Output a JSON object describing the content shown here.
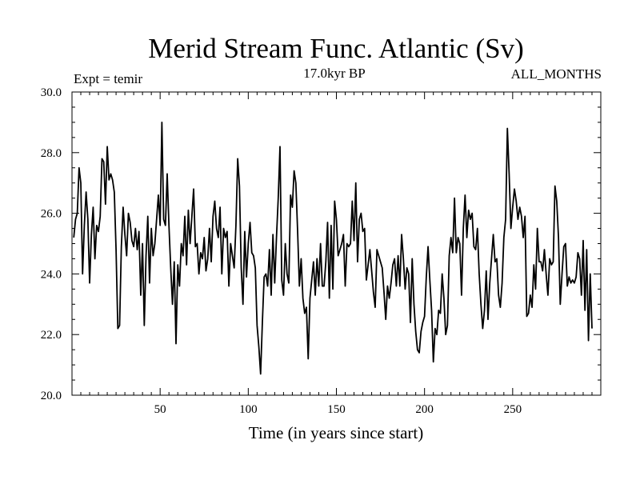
{
  "chart_data": {
    "type": "line",
    "title": "Merid Stream Func. Atlantic (Sv)",
    "subtitle_left": "Expt = temir",
    "subtitle_center": "17.0kyr BP",
    "subtitle_right": "ALL_MONTHS",
    "xlabel": "Time (in years since start)",
    "ylabel": "",
    "xlim": [
      0,
      300
    ],
    "ylim": [
      20,
      30
    ],
    "x_ticks": [
      50,
      100,
      150,
      200,
      250
    ],
    "y_ticks": [
      20.0,
      22.0,
      24.0,
      26.0,
      28.0,
      30.0
    ],
    "x_tick_labels": [
      "50",
      "100",
      "150",
      "200",
      "250"
    ],
    "y_tick_labels": [
      "20.0",
      "22.0",
      "24.0",
      "26.0",
      "28.0",
      "30.0"
    ],
    "grid": false,
    "series": [
      {
        "color": "#000000",
        "x_start": 1,
        "x_step": 1,
        "values": [
          25.2,
          25.8,
          26.0,
          27.5,
          27.0,
          24.0,
          25.6,
          26.7,
          25.8,
          23.7,
          25.3,
          26.2,
          24.5,
          25.6,
          25.4,
          25.9,
          27.8,
          27.7,
          26.3,
          28.2,
          27.1,
          27.3,
          27.1,
          26.7,
          24.8,
          22.2,
          22.3,
          24.9,
          26.2,
          25.3,
          24.6,
          26.0,
          25.7,
          25.1,
          24.9,
          25.5,
          24.8,
          25.4,
          23.3,
          25.0,
          22.3,
          24.6,
          25.9,
          23.7,
          25.5,
          24.6,
          25.0,
          25.8,
          26.6,
          25.6,
          29.0,
          25.8,
          25.6,
          27.3,
          25.6,
          24.2,
          23.0,
          24.4,
          21.7,
          24.3,
          23.6,
          25.0,
          24.6,
          25.9,
          24.3,
          26.1,
          25.0,
          25.9,
          26.8,
          24.9,
          25.0,
          24.0,
          24.7,
          24.5,
          25.2,
          24.1,
          24.5,
          25.5,
          24.4,
          25.9,
          26.4,
          25.5,
          25.2,
          26.2,
          24.0,
          25.5,
          25.2,
          25.4,
          23.6,
          25.0,
          24.6,
          24.2,
          25.6,
          27.8,
          26.9,
          24.2,
          23.0,
          25.4,
          23.9,
          25.0,
          25.7,
          24.7,
          24.6,
          24.2,
          22.3,
          21.6,
          20.7,
          22.4,
          23.9,
          24.0,
          23.6,
          24.8,
          23.3,
          25.3,
          23.7,
          25.2,
          26.5,
          28.2,
          23.8,
          23.3,
          25.0,
          24.0,
          23.7,
          26.6,
          26.2,
          27.4,
          27.0,
          25.4,
          23.6,
          24.5,
          23.2,
          22.7,
          22.9,
          21.2,
          23.2,
          23.8,
          24.4,
          23.3,
          24.5,
          23.6,
          25.0,
          23.6,
          23.6,
          24.4,
          25.7,
          23.2,
          25.6,
          23.5,
          26.4,
          25.8,
          24.6,
          24.8,
          25.0,
          25.3,
          23.6,
          25.0,
          24.9,
          25.0,
          26.4,
          25.1,
          27.0,
          24.4,
          25.8,
          26.0,
          25.4,
          25.5,
          23.8,
          24.3,
          24.8,
          24.1,
          23.4,
          22.9,
          24.8,
          24.6,
          24.4,
          24.2,
          23.4,
          22.5,
          23.6,
          23.2,
          23.7,
          24.3,
          24.5,
          23.6,
          24.6,
          23.6,
          25.3,
          24.5,
          23.5,
          24.2,
          24.0,
          22.4,
          24.5,
          23.0,
          22.1,
          21.5,
          21.4,
          22.1,
          22.4,
          22.6,
          23.9,
          24.9,
          23.8,
          22.8,
          21.1,
          22.2,
          22.0,
          22.8,
          22.7,
          24.0,
          23.2,
          22.0,
          22.3,
          24.6,
          25.2,
          24.7,
          26.5,
          24.7,
          25.2,
          25.0,
          23.3,
          25.5,
          26.6,
          25.2,
          26.1,
          25.8,
          26.0,
          24.9,
          24.8,
          25.5,
          24.0,
          23.0,
          22.2,
          22.8,
          24.1,
          22.5,
          23.7,
          24.5,
          25.3,
          24.4,
          24.5,
          23.3,
          22.9,
          23.7,
          25.2,
          25.8,
          28.8,
          27.3,
          25.5,
          26.2,
          26.8,
          26.4,
          25.8,
          26.2,
          25.9,
          25.2,
          25.9,
          22.6,
          22.7,
          23.3,
          22.9,
          24.3,
          23.5,
          25.5,
          24.4,
          24.4,
          24.1,
          24.8,
          24.0,
          23.3,
          24.5,
          24.3,
          24.4,
          26.9,
          26.4,
          25.2,
          23.0,
          24.0,
          24.9,
          25.0,
          23.6,
          23.9,
          23.7,
          23.8,
          23.7,
          23.9,
          24.7,
          24.5,
          23.3,
          25.1,
          22.8,
          24.8,
          21.8,
          24.0,
          22.2
        ]
      }
    ]
  }
}
